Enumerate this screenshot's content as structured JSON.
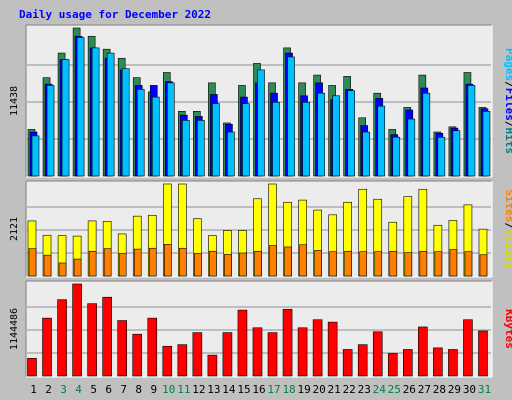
{
  "chart_data": {
    "type": "bar",
    "title": "Daily usage for December 2022",
    "categories": [
      "1",
      "2",
      "3",
      "4",
      "5",
      "6",
      "7",
      "8",
      "9",
      "10",
      "11",
      "12",
      "13",
      "14",
      "15",
      "16",
      "17",
      "18",
      "19",
      "20",
      "21",
      "22",
      "23",
      "24",
      "25",
      "26",
      "27",
      "28",
      "29",
      "30",
      "31"
    ],
    "weekend_days": [
      "3",
      "4",
      "10",
      "11",
      "17",
      "18",
      "24",
      "25",
      "31"
    ],
    "colors": {
      "background": "#c0c0c0",
      "plot_background": "#ececec",
      "title": "#0000ff",
      "weekday_label": "#000000",
      "weekend_label": "#008040",
      "hits": "#00c0ff",
      "files": "#0080ff",
      "pages": "#0000ff",
      "visits": "#ffff00",
      "sites": "#ff8000",
      "kbytes": "#ff0000",
      "pages_dark": "#2e8b57"
    },
    "panels": [
      {
        "id": "hits-files-pages",
        "axis_max_label": "11438",
        "ylim": [
          0,
          11438
        ],
        "legend": [
          {
            "text": "Pages",
            "color": "#00c0ff"
          },
          {
            "text": "/",
            "color": "#000000"
          },
          {
            "text": "Files",
            "color": "#0000ff"
          },
          {
            "text": "/",
            "color": "#000000"
          },
          {
            "text": "Hits",
            "color": "#008080"
          }
        ],
        "series": [
          {
            "role": "back",
            "color": "#2e8b57",
            "values": [
              3600,
              7600,
              9500,
              11438,
              10800,
              9800,
              9100,
              7600,
              6500,
              8000,
              5000,
              5000,
              7200,
              4100,
              7000,
              8700,
              7200,
              9900,
              7200,
              7800,
              7000,
              7700,
              4500,
              6400,
              3600,
              5300,
              7800,
              3400,
              3800,
              8000,
              5300
            ]
          },
          {
            "role": "middle",
            "color": "#0000ff",
            "values": [
              3400,
              7100,
              9000,
              10800,
              9900,
              9100,
              8200,
              7000,
              7000,
              7300,
              4700,
              4600,
              6300,
              4000,
              6100,
              7200,
              6400,
              9500,
              6200,
              7200,
              5900,
              6700,
              3900,
              6000,
              3200,
              5100,
              6800,
              3300,
              3700,
              7100,
              5200
            ]
          },
          {
            "role": "front",
            "color": "#00c0ff",
            "values": [
              3100,
              7000,
              9000,
              10700,
              9900,
              9500,
              8300,
              6700,
              6100,
              7200,
              4300,
              4300,
              5600,
              3400,
              5600,
              8200,
              5700,
              9200,
              5700,
              6400,
              6200,
              6600,
              3400,
              5400,
              3000,
              4400,
              6400,
              3000,
              3500,
              7000,
              5000
            ]
          }
        ]
      },
      {
        "id": "visits-sites",
        "axis_max_label": "2121",
        "ylim": [
          0,
          2121
        ],
        "legend": [
          {
            "text": "Sites",
            "color": "#ff8000"
          },
          {
            "text": "/",
            "color": "#000000"
          },
          {
            "text": "Visits",
            "color": "#d8d800"
          }
        ],
        "series": [
          {
            "role": "back",
            "color": "#ffff00",
            "values": [
              1270,
              940,
              930,
              920,
              1270,
              1260,
              970,
              1380,
              1400,
              2121,
              2121,
              1320,
              930,
              1050,
              1050,
              1780,
              2121,
              1700,
              1750,
              1520,
              1410,
              1700,
              2000,
              1770,
              1240,
              1830,
              2000,
              1170,
              1280,
              1640,
              1080
            ]
          },
          {
            "role": "front",
            "color": "#ff8000",
            "values": [
              630,
              480,
              300,
              390,
              570,
              630,
              520,
              620,
              640,
              730,
              640,
              520,
              570,
              500,
              530,
              570,
              700,
              670,
              720,
              590,
              560,
              570,
              560,
              560,
              570,
              540,
              570,
              560,
              610,
              560,
              490
            ]
          }
        ]
      },
      {
        "id": "kbytes",
        "axis_max_label": "1144486",
        "ylim": [
          0,
          1144486
        ],
        "legend": [
          {
            "text": "KBytes",
            "color": "#ff0000"
          }
        ],
        "series": [
          {
            "role": "single",
            "color": "#ff0000",
            "values": [
              220000,
              720000,
              950000,
              1144486,
              900000,
              980000,
              690000,
              520000,
              720000,
              370000,
              390000,
              540000,
              260000,
              540000,
              820000,
              600000,
              540000,
              830000,
              600000,
              700000,
              670000,
              330000,
              390000,
              550000,
              280000,
              330000,
              610000,
              350000,
              330000,
              700000,
              560000
            ]
          }
        ]
      }
    ]
  }
}
